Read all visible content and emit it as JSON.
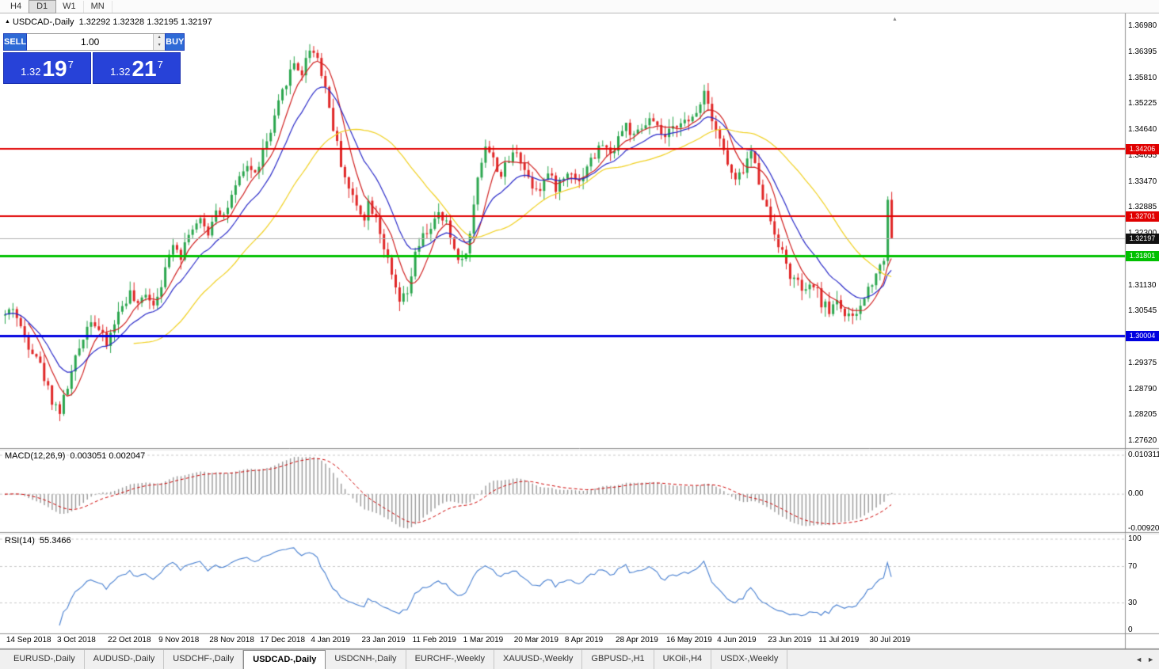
{
  "toolbar": {
    "timeframes": [
      {
        "label": "H4",
        "active": false
      },
      {
        "label": "D1",
        "active": true
      },
      {
        "label": "W1",
        "active": false
      },
      {
        "label": "MN",
        "active": false
      }
    ]
  },
  "chart_header": {
    "symbol_title": "USDCAD-,Daily",
    "ohlc": "1.32292 1.32328 1.32195 1.32197"
  },
  "trade_panel": {
    "sell_label": "SELL",
    "buy_label": "BUY",
    "volume": "1.00",
    "sell_price": {
      "big_figure": "1.32",
      "pips": "19",
      "pipette": "7"
    },
    "buy_price": {
      "big_figure": "1.32",
      "pips": "21",
      "pipette": "7"
    }
  },
  "price_scale": {
    "labels": [
      "1.36980",
      "1.36395",
      "1.35810",
      "1.35225",
      "1.34640",
      "1.34055",
      "1.33470",
      "1.32885",
      "1.32300",
      "1.31715",
      "1.31130",
      "1.30545",
      "1.29960",
      "1.29375",
      "1.28790",
      "1.28205",
      "1.27620"
    ]
  },
  "levels": [
    {
      "name": "resistance-upper",
      "label": "1.34206",
      "price": 1.34206,
      "color": "#e00000",
      "thickness": 2
    },
    {
      "name": "resistance-lower",
      "label": "1.32701",
      "price": 1.32701,
      "color": "#e00000",
      "thickness": 2
    },
    {
      "name": "current-price",
      "label": "1.32197",
      "price": 1.32197,
      "color": "#111111",
      "thickness": 1,
      "line_color": "#b0b0b0"
    },
    {
      "name": "support-green",
      "label": "1.31801",
      "price": 1.31801,
      "color": "#00c000",
      "thickness": 3
    },
    {
      "name": "support-blue",
      "label": "1.30004",
      "price": 1.30004,
      "color": "#0000e0",
      "thickness": 3
    }
  ],
  "macd_panel": {
    "label": "MACD(12,26,9)",
    "values": "0.003051 0.002047",
    "scale_max": "0.010311",
    "scale_zero": "0.00",
    "scale_min": "-0.009203"
  },
  "rsi_panel": {
    "label": "RSI(14)",
    "value": "55.3466",
    "scale": [
      "100",
      "70",
      "30",
      "0"
    ],
    "dashed_levels": [
      100,
      70,
      30
    ]
  },
  "x_axis": {
    "first_index": 2,
    "step": 13,
    "dates": [
      "14 Sep 2018",
      "3 Oct 2018",
      "22 Oct 2018",
      "9 Nov 2018",
      "28 Nov 2018",
      "17 Dec 2018",
      "4 Jan 2019",
      "23 Jan 2019",
      "11 Feb 2019",
      "1 Mar 2019",
      "20 Mar 2019",
      "8 Apr 2019",
      "28 Apr 2019",
      "16 May 2019",
      "4 Jun 2019",
      "23 Jun 2019",
      "11 Jul 2019",
      "30 Jul 2019"
    ]
  },
  "tabs": {
    "items": [
      {
        "label": "EURUSD-,Daily",
        "active": false
      },
      {
        "label": "AUDUSD-,Daily",
        "active": false
      },
      {
        "label": "USDCHF-,Daily",
        "active": false
      },
      {
        "label": "USDCAD-,Daily",
        "active": true
      },
      {
        "label": "USDCNH-,Daily",
        "active": false
      },
      {
        "label": "EURCHF-,Weekly",
        "active": false
      },
      {
        "label": "XAUUSD-,Weekly",
        "active": false
      },
      {
        "label": "GBPUSD-,H1",
        "active": false
      },
      {
        "label": "UKOil-,H4",
        "active": false
      },
      {
        "label": "USDX-,Weekly",
        "active": false
      }
    ]
  },
  "chart_data": {
    "type": "candlestick",
    "symbol": "USDCAD",
    "timeframe": "Daily",
    "candle_count": 228,
    "last_price": 1.32197,
    "ylim": [
      1.2762,
      1.3698
    ],
    "up_color": "#2ba64e",
    "down_color": "#e02626",
    "price_anchors": [
      [
        0,
        1.3045
      ],
      [
        2,
        1.3065
      ],
      [
        4,
        1.3015
      ],
      [
        6,
        1.298
      ],
      [
        8,
        1.2958
      ],
      [
        10,
        1.2905
      ],
      [
        12,
        1.2855
      ],
      [
        14,
        1.283
      ],
      [
        16,
        1.2885
      ],
      [
        18,
        1.2945
      ],
      [
        20,
        1.3
      ],
      [
        22,
        1.304
      ],
      [
        24,
        1.3012
      ],
      [
        26,
        1.2978
      ],
      [
        28,
        1.303
      ],
      [
        30,
        1.3068
      ],
      [
        32,
        1.3095
      ],
      [
        34,
        1.3062
      ],
      [
        36,
        1.31
      ],
      [
        38,
        1.3072
      ],
      [
        41,
        1.3145
      ],
      [
        43,
        1.3215
      ],
      [
        45,
        1.3182
      ],
      [
        47,
        1.3235
      ],
      [
        50,
        1.3255
      ],
      [
        52,
        1.3232
      ],
      [
        54,
        1.329
      ],
      [
        56,
        1.3272
      ],
      [
        58,
        1.331
      ],
      [
        60,
        1.335
      ],
      [
        62,
        1.3385
      ],
      [
        64,
        1.3362
      ],
      [
        66,
        1.3415
      ],
      [
        68,
        1.3455
      ],
      [
        70,
        1.352
      ],
      [
        72,
        1.3575
      ],
      [
        74,
        1.3615
      ],
      [
        76,
        1.3592
      ],
      [
        78,
        1.365
      ],
      [
        80,
        1.3628
      ],
      [
        82,
        1.356
      ],
      [
        84,
        1.347
      ],
      [
        86,
        1.339
      ],
      [
        88,
        1.333
      ],
      [
        90,
        1.3292
      ],
      [
        92,
        1.327
      ],
      [
        93,
        1.33
      ],
      [
        95,
        1.3272
      ],
      [
        97,
        1.32
      ],
      [
        99,
        1.313
      ],
      [
        101,
        1.3075
      ],
      [
        103,
        1.3092
      ],
      [
        105,
        1.318
      ],
      [
        107,
        1.3222
      ],
      [
        109,
        1.3246
      ],
      [
        111,
        1.327
      ],
      [
        113,
        1.325
      ],
      [
        115,
        1.3195
      ],
      [
        117,
        1.3165
      ],
      [
        119,
        1.3225
      ],
      [
        121,
        1.336
      ],
      [
        123,
        1.3432
      ],
      [
        125,
        1.3395
      ],
      [
        127,
        1.3362
      ],
      [
        129,
        1.3395
      ],
      [
        131,
        1.342
      ],
      [
        133,
        1.3375
      ],
      [
        135,
        1.334
      ],
      [
        137,
        1.3335
      ],
      [
        139,
        1.3365
      ],
      [
        141,
        1.3335
      ],
      [
        143,
        1.3355
      ],
      [
        145,
        1.3375
      ],
      [
        147,
        1.3345
      ],
      [
        149,
        1.3385
      ],
      [
        151,
        1.3405
      ],
      [
        153,
        1.3435
      ],
      [
        155,
        1.3405
      ],
      [
        157,
        1.345
      ],
      [
        159,
        1.3475
      ],
      [
        161,
        1.3445
      ],
      [
        163,
        1.3465
      ],
      [
        165,
        1.3485
      ],
      [
        167,
        1.3465
      ],
      [
        169,
        1.3445
      ],
      [
        171,
        1.3465
      ],
      [
        173,
        1.349
      ],
      [
        175,
        1.3475
      ],
      [
        177,
        1.3505
      ],
      [
        179,
        1.3555
      ],
      [
        181,
        1.3495
      ],
      [
        183,
        1.3445
      ],
      [
        185,
        1.3385
      ],
      [
        187,
        1.3345
      ],
      [
        189,
        1.3375
      ],
      [
        191,
        1.3415
      ],
      [
        193,
        1.335
      ],
      [
        195,
        1.3285
      ],
      [
        197,
        1.3235
      ],
      [
        199,
        1.3185
      ],
      [
        201,
        1.3135
      ],
      [
        203,
        1.3115
      ],
      [
        205,
        1.3095
      ],
      [
        207,
        1.3115
      ],
      [
        209,
        1.3075
      ],
      [
        211,
        1.3055
      ],
      [
        213,
        1.3085
      ],
      [
        215,
        1.3045
      ],
      [
        217,
        1.3035
      ],
      [
        219,
        1.3065
      ],
      [
        221,
        1.3105
      ],
      [
        223,
        1.3145
      ],
      [
        224,
        1.3155
      ],
      [
        225,
        1.3175
      ],
      [
        226,
        1.331
      ],
      [
        227,
        1.32197
      ]
    ],
    "ma_lines": [
      {
        "name": "ma-fast",
        "type": "sma",
        "period": 7,
        "color": "#d02020"
      },
      {
        "name": "ma-mid",
        "type": "ema",
        "period": 15,
        "color": "#2929c8"
      },
      {
        "name": "ma-slow",
        "type": "sma",
        "period": 34,
        "color": "#f0d020"
      }
    ],
    "macd": {
      "fast": 12,
      "slow": 26,
      "signal": 9,
      "range": [
        -0.009203,
        0.010311
      ],
      "histogram_color": "#999999",
      "signal_color": "#cc0000"
    },
    "rsi": {
      "period": 14,
      "range": [
        0,
        100
      ],
      "color": "#477fd0"
    }
  }
}
